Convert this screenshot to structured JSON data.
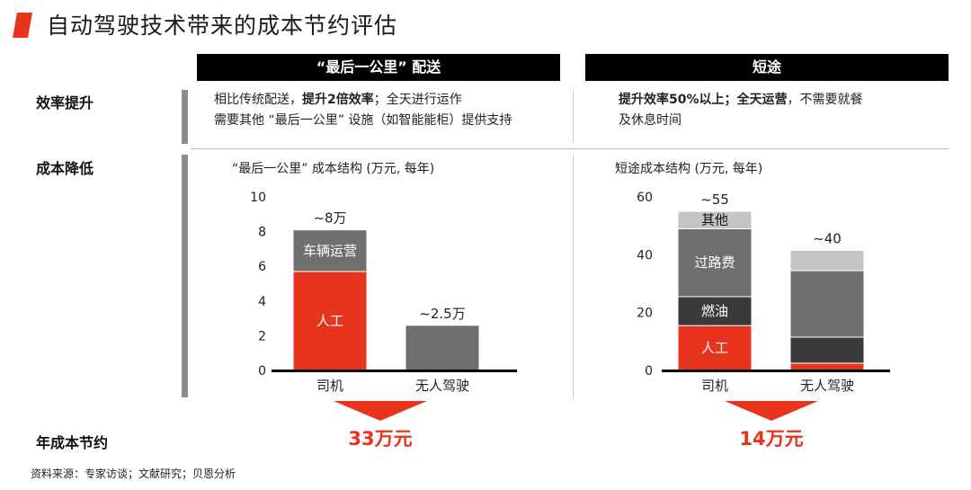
{
  "title": "自动驾驶技术带来的成本节约评估",
  "colors": {
    "accent": "#e8341c",
    "dark": "#3a3a3a",
    "mid": "#6f6f70",
    "light": "#c4c4c4",
    "header_bg": "#000000"
  },
  "columns": [
    {
      "header": "“最后一公里” 配送"
    },
    {
      "header": "短途"
    }
  ],
  "rows": {
    "efficiency": "效率提升",
    "cost": "成本降低",
    "saving": "年成本节约"
  },
  "efficiency": {
    "left": {
      "line1_pre": "相比传统配送，",
      "line1_bold": "提升2倍效率",
      "line1_post": "；全天进行运作",
      "line2": "需要其他 “最后一公里” 设施（如智能能柜）提供支持"
    },
    "right": {
      "line1_bold": "提升效率50%以上；全天运营",
      "line1_post": "，不需要就餐",
      "line2": "及休息时间"
    }
  },
  "savings": {
    "left": "33万元",
    "right": "14万元"
  },
  "source": "资料来源：专家访谈；文献研究；贝恩分析",
  "chart_data": [
    {
      "type": "bar",
      "stacked": true,
      "title": "“最后一公里” 成本结构 (万元, 每年)",
      "categories": [
        "司机",
        "无人驾驶"
      ],
      "yticks": [
        "0",
        "2",
        "4",
        "6",
        "8",
        "10"
      ],
      "ylim": [
        0,
        10
      ],
      "series": [
        {
          "name": "人工",
          "color": "#e8341c",
          "values": [
            5.7,
            0
          ]
        },
        {
          "name": "车辆运营",
          "color": "#6f6f70",
          "values": [
            2.4,
            2.6
          ]
        }
      ],
      "totals": [
        "~8万",
        "~2.5万"
      ]
    },
    {
      "type": "bar",
      "stacked": true,
      "title": "短途成本结构 (万元, 每年)",
      "categories": [
        "司机",
        "无人驾驶"
      ],
      "yticks": [
        "0",
        "20",
        "40",
        "60"
      ],
      "ylim": [
        0,
        60
      ],
      "series": [
        {
          "name": "人工",
          "color": "#e8341c",
          "values": [
            15.5,
            2.5
          ]
        },
        {
          "name": "燃油",
          "color": "#3a3a3a",
          "values": [
            10,
            9
          ]
        },
        {
          "name": "过路费",
          "color": "#6f6f70",
          "values": [
            23.5,
            23
          ]
        },
        {
          "name": "其他",
          "color": "#c4c4c4",
          "values": [
            6,
            7
          ]
        }
      ],
      "totals": [
        "~55",
        "~40"
      ]
    }
  ]
}
